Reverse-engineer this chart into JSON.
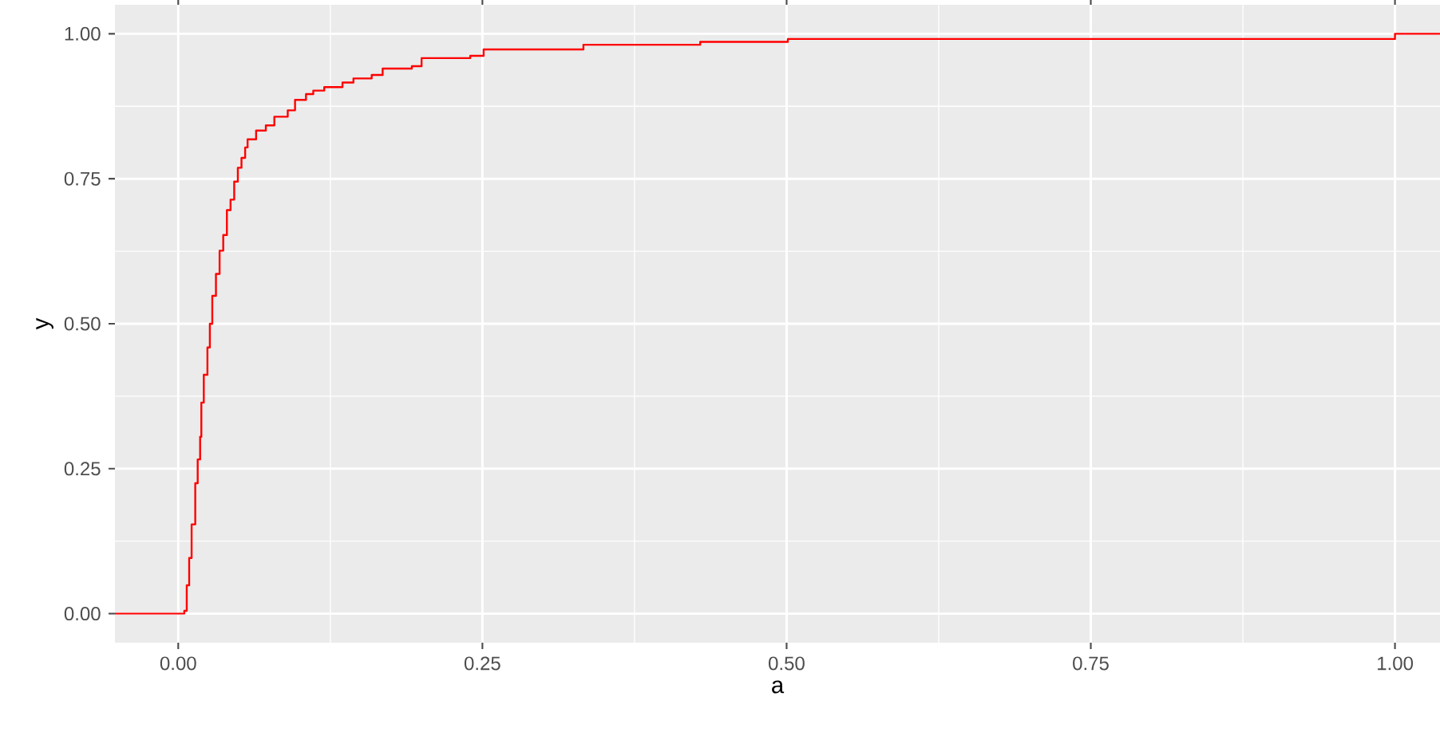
{
  "chart_data": {
    "type": "step",
    "xlabel": "a",
    "ylabel": "y",
    "color": "#ff0000",
    "grid": true,
    "xlim": [
      -0.052,
      1.037
    ],
    "ylim": [
      -0.05,
      1.05
    ],
    "xticks": [
      {
        "value": 0,
        "label": "0.00"
      },
      {
        "value": 0.25,
        "label": "0.25"
      },
      {
        "value": 0.5,
        "label": "0.50"
      },
      {
        "value": 0.75,
        "label": "0.75"
      },
      {
        "value": 1,
        "label": "1.00"
      }
    ],
    "yticks": [
      {
        "value": 0,
        "label": "0.00"
      },
      {
        "value": 0.25,
        "label": "0.25"
      },
      {
        "value": 0.5,
        "label": "0.50"
      },
      {
        "value": 0.75,
        "label": "0.75"
      },
      {
        "value": 1,
        "label": "1.00"
      }
    ],
    "x": [
      -0.052,
      0.005,
      0.007,
      0.009,
      0.011,
      0.014,
      0.016,
      0.018,
      0.019,
      0.021,
      0.024,
      0.026,
      0.028,
      0.031,
      0.034,
      0.037,
      0.04,
      0.043,
      0.046,
      0.049,
      0.052,
      0.055,
      0.057,
      0.064,
      0.072,
      0.079,
      0.09,
      0.096,
      0.105,
      0.111,
      0.12,
      0.135,
      0.144,
      0.159,
      0.168,
      0.192,
      0.2,
      0.24,
      0.251,
      0.333,
      0.429,
      0.501,
      1.0,
      1.037
    ],
    "values": [
      0,
      0.005,
      0.049,
      0.096,
      0.154,
      0.225,
      0.266,
      0.305,
      0.364,
      0.412,
      0.459,
      0.5,
      0.548,
      0.586,
      0.626,
      0.653,
      0.696,
      0.714,
      0.745,
      0.769,
      0.786,
      0.804,
      0.818,
      0.833,
      0.842,
      0.857,
      0.868,
      0.886,
      0.896,
      0.902,
      0.908,
      0.916,
      0.923,
      0.929,
      0.94,
      0.944,
      0.958,
      0.962,
      0.973,
      0.981,
      0.986,
      0.991,
      1.0,
      1.0
    ]
  }
}
